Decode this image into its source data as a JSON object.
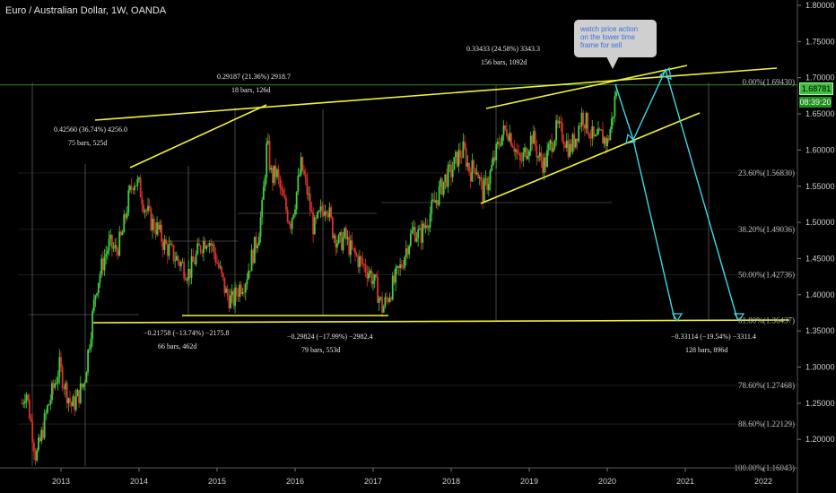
{
  "title": "Euro / Australian Dollar, 1W, OANDA",
  "callout": {
    "lines": [
      "watch price action",
      "on the lower time",
      "frame for sell"
    ]
  },
  "price_tag": "1.68781",
  "time_tag": "08:39:20",
  "chart_data": {
    "type": "candlestick",
    "x_ticks": [
      "2013",
      "2014",
      "2015",
      "2016",
      "2017",
      "2018",
      "2019",
      "2020",
      "2021",
      "2022"
    ],
    "y_ticks": [
      "1.80000",
      "1.75000",
      "1.70000",
      "1.65000",
      "1.60000",
      "1.55000",
      "1.50000",
      "1.45000",
      "1.40000",
      "1.35000",
      "1.30000",
      "1.25000",
      "1.20000"
    ],
    "ylim": [
      1.155,
      1.805
    ],
    "fib_levels": [
      {
        "label": "0.00%(1.69430)",
        "value": 1.6943
      },
      {
        "label": "23.60%(1.56830)",
        "value": 1.5683
      },
      {
        "label": "38.20%(1.49036)",
        "value": 1.49036
      },
      {
        "label": "50.00%(1.42736)",
        "value": 1.42736
      },
      {
        "label": "61.80%(1.36437)",
        "value": 1.36437
      },
      {
        "label": "78.60%(1.27468)",
        "value": 1.27468
      },
      {
        "label": "88.60%(1.22129)",
        "value": 1.22129
      },
      {
        "label": "100.00%(1.16043)",
        "value": 1.16043
      }
    ],
    "measurements": [
      {
        "line1": "0.42560 (36.74%) 4256.0",
        "line2": "75 bars, 525d"
      },
      {
        "line1": "0.29187 (21.36%) 2918.7",
        "line2": "18 bars, 126d"
      },
      {
        "line1": "0.33433 (24.58%) 3343.3",
        "line2": "156 bars, 1092d"
      },
      {
        "line1": "−0.21758 (−13.74%) −2175.8",
        "line2": "66 bars, 462d"
      },
      {
        "line1": "−0.29824 (−17.99%) −2982.4",
        "line2": "79 bars, 553d"
      },
      {
        "line1": "−0.33114 (−19.54%) −3311.4",
        "line2": "128 bars, 896d"
      }
    ],
    "current_price": 1.68781,
    "series_path": [
      {
        "t": 2012.5,
        "p": 1.25
      },
      {
        "t": 2012.55,
        "p": 1.27
      },
      {
        "t": 2012.62,
        "p": 1.22
      },
      {
        "t": 2012.68,
        "p": 1.175
      },
      {
        "t": 2012.74,
        "p": 1.2
      },
      {
        "t": 2012.82,
        "p": 1.24
      },
      {
        "t": 2012.9,
        "p": 1.27
      },
      {
        "t": 2012.98,
        "p": 1.3
      },
      {
        "t": 2013.06,
        "p": 1.27
      },
      {
        "t": 2013.14,
        "p": 1.245
      },
      {
        "t": 2013.22,
        "p": 1.26
      },
      {
        "t": 2013.3,
        "p": 1.28
      },
      {
        "t": 2013.38,
        "p": 1.35
      },
      {
        "t": 2013.45,
        "p": 1.41
      },
      {
        "t": 2013.55,
        "p": 1.45
      },
      {
        "t": 2013.62,
        "p": 1.47
      },
      {
        "t": 2013.7,
        "p": 1.46
      },
      {
        "t": 2013.78,
        "p": 1.48
      },
      {
        "t": 2013.86,
        "p": 1.53
      },
      {
        "t": 2013.93,
        "p": 1.56
      },
      {
        "t": 2014.0,
        "p": 1.55
      },
      {
        "t": 2014.08,
        "p": 1.52
      },
      {
        "t": 2014.16,
        "p": 1.5
      },
      {
        "t": 2014.24,
        "p": 1.49
      },
      {
        "t": 2014.32,
        "p": 1.47
      },
      {
        "t": 2014.4,
        "p": 1.46
      },
      {
        "t": 2014.48,
        "p": 1.45
      },
      {
        "t": 2014.56,
        "p": 1.44
      },
      {
        "t": 2014.64,
        "p": 1.43
      },
      {
        "t": 2014.72,
        "p": 1.45
      },
      {
        "t": 2014.8,
        "p": 1.47
      },
      {
        "t": 2014.88,
        "p": 1.48
      },
      {
        "t": 2014.96,
        "p": 1.46
      },
      {
        "t": 2015.04,
        "p": 1.43
      },
      {
        "t": 2015.12,
        "p": 1.4
      },
      {
        "t": 2015.2,
        "p": 1.39
      },
      {
        "t": 2015.28,
        "p": 1.41
      },
      {
        "t": 2015.36,
        "p": 1.42
      },
      {
        "t": 2015.44,
        "p": 1.45
      },
      {
        "t": 2015.52,
        "p": 1.48
      },
      {
        "t": 2015.58,
        "p": 1.52
      },
      {
        "t": 2015.64,
        "p": 1.61
      },
      {
        "t": 2015.7,
        "p": 1.56
      },
      {
        "t": 2015.76,
        "p": 1.57
      },
      {
        "t": 2015.82,
        "p": 1.54
      },
      {
        "t": 2015.88,
        "p": 1.52
      },
      {
        "t": 2015.94,
        "p": 1.5
      },
      {
        "t": 2016.0,
        "p": 1.53
      },
      {
        "t": 2016.08,
        "p": 1.58
      },
      {
        "t": 2016.16,
        "p": 1.54
      },
      {
        "t": 2016.24,
        "p": 1.49
      },
      {
        "t": 2016.32,
        "p": 1.51
      },
      {
        "t": 2016.4,
        "p": 1.53
      },
      {
        "t": 2016.48,
        "p": 1.49
      },
      {
        "t": 2016.56,
        "p": 1.47
      },
      {
        "t": 2016.64,
        "p": 1.48
      },
      {
        "t": 2016.72,
        "p": 1.46
      },
      {
        "t": 2016.8,
        "p": 1.45
      },
      {
        "t": 2016.88,
        "p": 1.44
      },
      {
        "t": 2016.96,
        "p": 1.43
      },
      {
        "t": 2017.04,
        "p": 1.41
      },
      {
        "t": 2017.12,
        "p": 1.38
      },
      {
        "t": 2017.2,
        "p": 1.4
      },
      {
        "t": 2017.28,
        "p": 1.42
      },
      {
        "t": 2017.36,
        "p": 1.44
      },
      {
        "t": 2017.44,
        "p": 1.47
      },
      {
        "t": 2017.52,
        "p": 1.49
      },
      {
        "t": 2017.6,
        "p": 1.48
      },
      {
        "t": 2017.68,
        "p": 1.5
      },
      {
        "t": 2017.76,
        "p": 1.52
      },
      {
        "t": 2017.84,
        "p": 1.54
      },
      {
        "t": 2017.92,
        "p": 1.56
      },
      {
        "t": 2018.0,
        "p": 1.57
      },
      {
        "t": 2018.08,
        "p": 1.59
      },
      {
        "t": 2018.16,
        "p": 1.6
      },
      {
        "t": 2018.24,
        "p": 1.57
      },
      {
        "t": 2018.32,
        "p": 1.58
      },
      {
        "t": 2018.4,
        "p": 1.54
      },
      {
        "t": 2018.48,
        "p": 1.56
      },
      {
        "t": 2018.56,
        "p": 1.59
      },
      {
        "t": 2018.64,
        "p": 1.62
      },
      {
        "t": 2018.72,
        "p": 1.63
      },
      {
        "t": 2018.8,
        "p": 1.61
      },
      {
        "t": 2018.88,
        "p": 1.58
      },
      {
        "t": 2018.96,
        "p": 1.6
      },
      {
        "t": 2019.04,
        "p": 1.62
      },
      {
        "t": 2019.12,
        "p": 1.59
      },
      {
        "t": 2019.2,
        "p": 1.58
      },
      {
        "t": 2019.28,
        "p": 1.61
      },
      {
        "t": 2019.36,
        "p": 1.63
      },
      {
        "t": 2019.44,
        "p": 1.62
      },
      {
        "t": 2019.52,
        "p": 1.6
      },
      {
        "t": 2019.6,
        "p": 1.62
      },
      {
        "t": 2019.68,
        "p": 1.65
      },
      {
        "t": 2019.76,
        "p": 1.63
      },
      {
        "t": 2019.84,
        "p": 1.61
      },
      {
        "t": 2019.92,
        "p": 1.62
      },
      {
        "t": 2020.0,
        "p": 1.61
      },
      {
        "t": 2020.06,
        "p": 1.64
      },
      {
        "t": 2020.12,
        "p": 1.688
      }
    ]
  }
}
